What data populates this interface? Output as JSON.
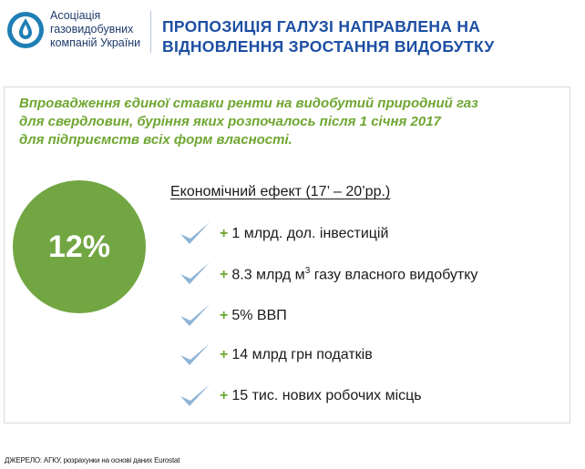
{
  "logo": {
    "icon": "water-drop-icon",
    "lines": [
      "Асоціація",
      "газовидобувних",
      "компаній України"
    ]
  },
  "title": {
    "line1": "ПРОПОЗИЦІЯ ГАЛУЗІ НАПРАВЛЕНА НА",
    "line2": "ВІДНОВЛЕННЯ ЗРОСТАННЯ ВИДОБУТКУ"
  },
  "intro": {
    "line1": "Впровадження єдиної ставки ренти на видобутий природний газ",
    "line2": "для свердловин, буріння яких  розпочалось після 1 січня 2017",
    "line3": "для підприємств всіх форм власності."
  },
  "circle": {
    "value": "12%",
    "color": "#72a643"
  },
  "effect": {
    "title": "Економічний ефект (17’ – 20’рр.)",
    "items": [
      {
        "plus": "+",
        "text": "1 млрд. дол. інвестицій"
      },
      {
        "plus": "+",
        "text": "8.3 млрд м",
        "sup": "3",
        "text_after": " газу власного видобутку"
      },
      {
        "plus": "+",
        "text": "5% ВВП"
      },
      {
        "plus": "+",
        "text": "14 млрд грн податків"
      },
      {
        "plus": "+",
        "text": "15 тис. нових робочих місць"
      }
    ]
  },
  "source": "ДЖЕРЕЛО: АГКУ, розрахунки на основі даних Eurostat",
  "colors": {
    "title": "#1d4fa3",
    "accent_green": "#6fa632",
    "check": "#8fb4d6"
  }
}
